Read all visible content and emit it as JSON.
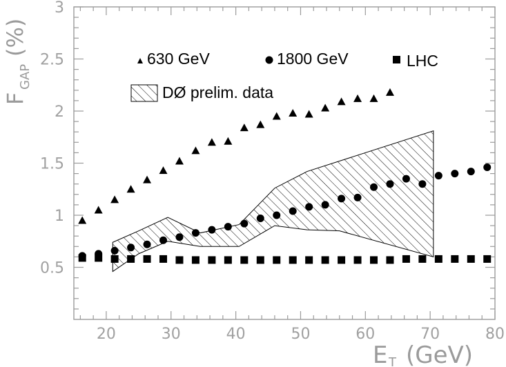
{
  "chart_data": {
    "type": "scatter",
    "ylabel_main": "F",
    "ylabel_sub": "GAP",
    "ylabel_unit": "(%)",
    "xlabel_main": "E",
    "xlabel_sub": "T",
    "xlabel_unit": "(GeV)",
    "xlim": [
      15,
      80
    ],
    "ylim": [
      0,
      3
    ],
    "xticks": [
      20,
      30,
      40,
      50,
      60,
      70,
      80
    ],
    "yticks": [
      0.5,
      1,
      1.5,
      2,
      2.5,
      3
    ],
    "ytick_labels": [
      "0.5",
      "1",
      "1.5",
      "2",
      "2.5",
      "3"
    ],
    "legend": [
      {
        "marker": "triangle",
        "label": "630 GeV"
      },
      {
        "marker": "circle",
        "label": "1800 GeV"
      },
      {
        "marker": "square",
        "label": "LHC"
      },
      {
        "marker": "hatched-band",
        "label": "DØ prelim. data"
      }
    ],
    "series": [
      {
        "name": "630 GeV",
        "marker": "triangle",
        "x": [
          16.3,
          18.8,
          21.3,
          23.8,
          26.3,
          28.8,
          31.3,
          33.8,
          36.3,
          38.8,
          41.3,
          43.8,
          46.3,
          48.8,
          51.3,
          53.8,
          56.3,
          58.8,
          61.3,
          63.8
        ],
        "y": [
          0.95,
          1.05,
          1.15,
          1.25,
          1.34,
          1.43,
          1.52,
          1.62,
          1.7,
          1.71,
          1.84,
          1.87,
          1.95,
          1.98,
          1.97,
          2.03,
          2.09,
          2.12,
          2.12,
          2.18
        ]
      },
      {
        "name": "1800 GeV",
        "marker": "circle",
        "x": [
          16.3,
          18.8,
          21.3,
          23.8,
          26.3,
          28.8,
          31.3,
          33.8,
          36.3,
          38.8,
          41.3,
          43.8,
          46.3,
          48.8,
          51.3,
          53.8,
          56.3,
          58.8,
          61.3,
          63.8,
          66.3,
          68.8,
          71.3,
          73.8,
          76.3,
          78.8
        ],
        "y": [
          0.61,
          0.63,
          0.66,
          0.69,
          0.72,
          0.76,
          0.79,
          0.83,
          0.86,
          0.89,
          0.92,
          0.97,
          1.0,
          1.04,
          1.08,
          1.1,
          1.16,
          1.17,
          1.27,
          1.3,
          1.35,
          1.3,
          1.38,
          1.4,
          1.42,
          1.46
        ]
      },
      {
        "name": "LHC",
        "marker": "square",
        "x": [
          16.3,
          18.8,
          21.3,
          23.8,
          26.3,
          28.8,
          31.3,
          33.8,
          36.3,
          38.8,
          41.3,
          43.8,
          46.3,
          48.8,
          51.3,
          53.8,
          56.3,
          58.8,
          61.3,
          63.8,
          66.3,
          68.8,
          71.3,
          73.8,
          76.3,
          78.8
        ],
        "y": [
          0.59,
          0.59,
          0.58,
          0.58,
          0.58,
          0.58,
          0.57,
          0.57,
          0.57,
          0.57,
          0.57,
          0.57,
          0.57,
          0.57,
          0.57,
          0.57,
          0.57,
          0.57,
          0.57,
          0.57,
          0.58,
          0.58,
          0.58,
          0.58,
          0.58,
          0.58
        ]
      }
    ],
    "band": {
      "name": "DØ prelim. data",
      "upper": [
        [
          21,
          0.74
        ],
        [
          25,
          0.85
        ],
        [
          29.5,
          0.98
        ],
        [
          34.5,
          0.83
        ],
        [
          40.5,
          0.91
        ],
        [
          46,
          1.26
        ],
        [
          51,
          1.42
        ],
        [
          70.5,
          1.81
        ]
      ],
      "lower": [
        [
          21,
          0.46
        ],
        [
          25,
          0.63
        ],
        [
          29.5,
          0.75
        ],
        [
          34.5,
          0.7
        ],
        [
          40.5,
          0.7
        ],
        [
          46,
          0.9
        ],
        [
          51,
          0.86
        ],
        [
          56,
          0.85
        ],
        [
          70.5,
          0.6
        ]
      ]
    }
  }
}
